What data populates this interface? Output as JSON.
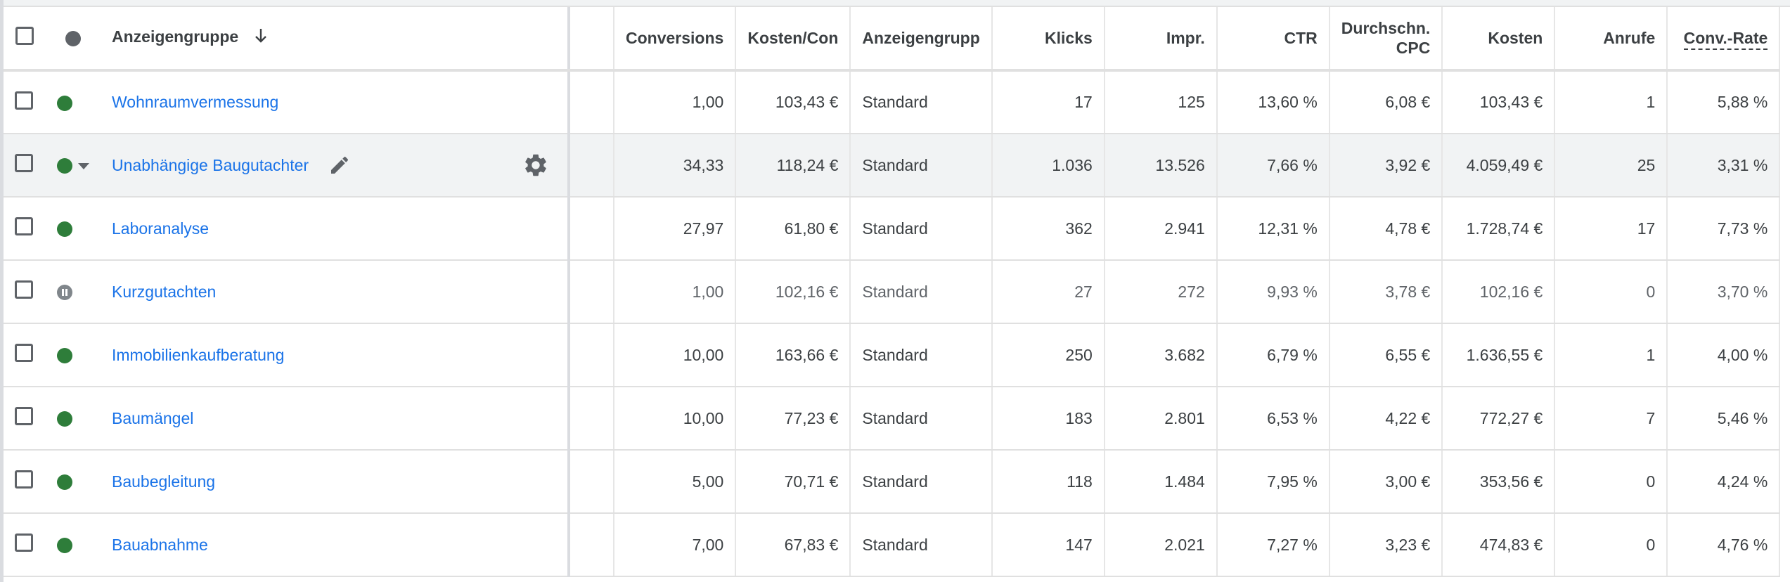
{
  "columns": {
    "ad_group": "Anzeigengruppe",
    "conversions": "Conversions",
    "cost_per_conv": "Kosten/Con",
    "ad_group_type": "Anzeigengrupp",
    "clicks": "Klicks",
    "impr": "Impr.",
    "ctr": "CTR",
    "avg_cpc_line1": "Durchschn.",
    "avg_cpc_line2": "CPC",
    "cost": "Kosten",
    "calls": "Anrufe",
    "conv_rate": "Conv.-Rate"
  },
  "rows": [
    {
      "name": "Wohnraumvermessung",
      "conversions": "1,00",
      "cost_per_conv": "103,43 €",
      "type": "Standard",
      "clicks": "17",
      "impr": "125",
      "ctr": "13,60 %",
      "avg_cpc": "6,08 €",
      "cost": "103,43 €",
      "calls": "1",
      "conv_rate": "5,88 %",
      "status": "enabled"
    },
    {
      "name": "Unabhängige Baugutachter",
      "conversions": "34,33",
      "cost_per_conv": "118,24 €",
      "type": "Standard",
      "clicks": "1.036",
      "impr": "13.526",
      "ctr": "7,66 %",
      "avg_cpc": "3,92 €",
      "cost": "4.059,49 €",
      "calls": "25",
      "conv_rate": "3,31 %",
      "status": "enabled"
    },
    {
      "name": "Laboranalyse",
      "conversions": "27,97",
      "cost_per_conv": "61,80 €",
      "type": "Standard",
      "clicks": "362",
      "impr": "2.941",
      "ctr": "12,31 %",
      "avg_cpc": "4,78 €",
      "cost": "1.728,74 €",
      "calls": "17",
      "conv_rate": "7,73 %",
      "status": "enabled"
    },
    {
      "name": "Kurzgutachten",
      "conversions": "1,00",
      "cost_per_conv": "102,16 €",
      "type": "Standard",
      "clicks": "27",
      "impr": "272",
      "ctr": "9,93 %",
      "avg_cpc": "3,78 €",
      "cost": "102,16 €",
      "calls": "0",
      "conv_rate": "3,70 %",
      "status": "paused"
    },
    {
      "name": "Immobilienkaufberatung",
      "conversions": "10,00",
      "cost_per_conv": "163,66 €",
      "type": "Standard",
      "clicks": "250",
      "impr": "3.682",
      "ctr": "6,79 %",
      "avg_cpc": "6,55 €",
      "cost": "1.636,55 €",
      "calls": "1",
      "conv_rate": "4,00 %",
      "status": "enabled"
    },
    {
      "name": "Baumängel",
      "conversions": "10,00",
      "cost_per_conv": "77,23 €",
      "type": "Standard",
      "clicks": "183",
      "impr": "2.801",
      "ctr": "6,53 %",
      "avg_cpc": "4,22 €",
      "cost": "772,27 €",
      "calls": "7",
      "conv_rate": "5,46 %",
      "status": "enabled"
    },
    {
      "name": "Baubegleitung",
      "conversions": "5,00",
      "cost_per_conv": "70,71 €",
      "type": "Standard",
      "clicks": "118",
      "impr": "1.484",
      "ctr": "7,95 %",
      "avg_cpc": "3,00 €",
      "cost": "353,56 €",
      "calls": "0",
      "conv_rate": "4,24 %",
      "status": "enabled"
    },
    {
      "name": "Bauabnahme",
      "conversions": "7,00",
      "cost_per_conv": "67,83 €",
      "type": "Standard",
      "clicks": "147",
      "impr": "2.021",
      "ctr": "7,27 %",
      "avg_cpc": "3,23 €",
      "cost": "474,83 €",
      "calls": "0",
      "conv_rate": "4,76 %",
      "status": "enabled"
    }
  ],
  "colors": {
    "link": "#1a73e8",
    "enabled": "#2e7d3a",
    "paused": "#80868b",
    "header_dot": "#5f6368",
    "hover_row": "#f1f3f4"
  },
  "icons": {
    "sort": "arrow-down-icon",
    "edit": "pencil-icon",
    "settings": "gear-icon",
    "expand": "caret-down-icon"
  }
}
